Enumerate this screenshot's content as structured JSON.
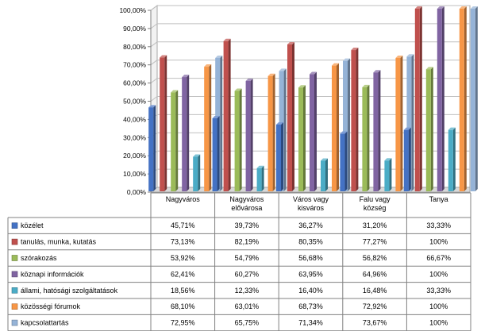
{
  "chart_data": {
    "type": "bar",
    "categories": [
      "Nagyváros",
      "Nagyváros elővárosa",
      "Város vagy kisváros",
      "Falu vagy község",
      "Tanya"
    ],
    "category_lines": [
      [
        "Nagyváros"
      ],
      [
        "Nagyváros",
        "elővárosa"
      ],
      [
        "Város vagy",
        "kisváros"
      ],
      [
        "Falu vagy",
        "község"
      ],
      [
        "Tanya"
      ]
    ],
    "ylim": [
      0,
      100
    ],
    "y_ticks": [
      "0,00%",
      "10,00%",
      "20,00%",
      "30,00%",
      "40,00%",
      "50,00%",
      "60,00%",
      "70,00%",
      "80,00%",
      "90,00%",
      "100,00%"
    ],
    "grid": true,
    "legend_placement": "data-table",
    "series": [
      {
        "name": "közélet",
        "color": "#4472C4",
        "values": [
          45.71,
          39.73,
          36.27,
          31.2,
          33.33
        ],
        "labels": [
          "45,71%",
          "39,73%",
          "36,27%",
          "31,20%",
          "33,33%"
        ]
      },
      {
        "name": "tanulás, munka, kutatás",
        "color": "#C0504D",
        "values": [
          73.13,
          82.19,
          80.35,
          77.27,
          100
        ],
        "labels": [
          "73,13%",
          "82,19%",
          "80,35%",
          "77,27%",
          "100%"
        ]
      },
      {
        "name": "szórakozás",
        "color": "#9BBB59",
        "values": [
          53.92,
          54.79,
          56.68,
          56.82,
          66.67
        ],
        "labels": [
          "53,92%",
          "54,79%",
          "56,68%",
          "56,82%",
          "66,67%"
        ]
      },
      {
        "name": "köznapi információk",
        "color": "#8064A2",
        "values": [
          62.41,
          60.27,
          63.95,
          64.96,
          100
        ],
        "labels": [
          "62,41%",
          "60,27%",
          "63,95%",
          "64,96%",
          "100%"
        ]
      },
      {
        "name": "állami, hatósági szolgáltatások",
        "color": "#4BACC6",
        "values": [
          18.56,
          12.33,
          16.4,
          16.48,
          33.33
        ],
        "labels": [
          "18,56%",
          "12,33%",
          "16,40%",
          "16,48%",
          "33,33%"
        ]
      },
      {
        "name": "közösségi fórumok",
        "color": "#F79646",
        "values": [
          68.1,
          63.01,
          68.73,
          72.92,
          100
        ],
        "labels": [
          "68,10%",
          "63,01%",
          "68,73%",
          "72,92%",
          "100%"
        ]
      },
      {
        "name": "kapcsolattartás",
        "color": "#95B3D7",
        "values": [
          72.95,
          65.75,
          71.34,
          73.67,
          100
        ],
        "labels": [
          "72,95%",
          "65,75%",
          "71,34%",
          "73,67%",
          "100%"
        ]
      }
    ]
  }
}
